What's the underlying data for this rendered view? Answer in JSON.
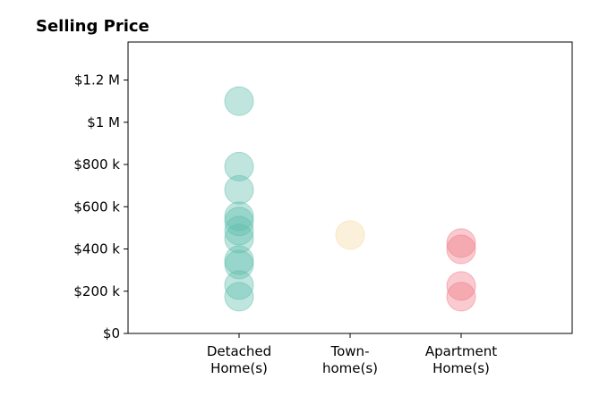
{
  "chart_data": {
    "type": "strip",
    "title": "Selling Price",
    "categories": [
      "Detached\nHome(s)",
      "Town-\nhome(s)",
      "Apartment\nHome(s)"
    ],
    "values": [
      [
        1100000,
        790000,
        680000,
        555000,
        530000,
        487000,
        449000,
        347000,
        326000,
        229000,
        174000
      ],
      [
        466000
      ],
      [
        428000,
        398000,
        225000,
        174000
      ]
    ],
    "colors": [
      "#5fbfad",
      "#f5d9a0",
      "#f07a88"
    ],
    "opacity": 0.4,
    "ylim": [
      0,
      1380000
    ],
    "yticks": [
      {
        "value": 0,
        "label": "$0"
      },
      {
        "value": 200000,
        "label": "$200 k"
      },
      {
        "value": 400000,
        "label": "$400 k"
      },
      {
        "value": 600000,
        "label": "$600 k"
      },
      {
        "value": 800000,
        "label": "$800 k"
      },
      {
        "value": 1000000,
        "label": "$1 M"
      },
      {
        "value": 1200000,
        "label": "$1.2 M"
      }
    ]
  }
}
